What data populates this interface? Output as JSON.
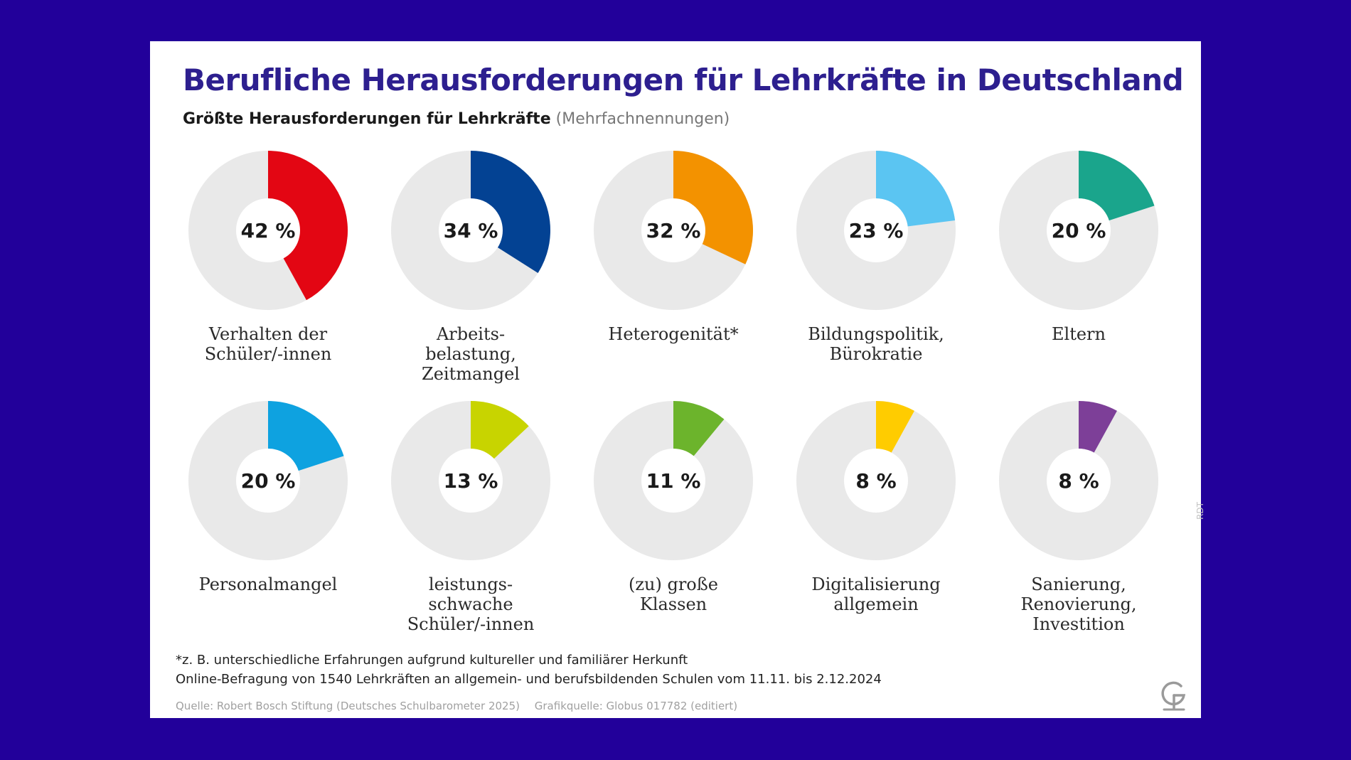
{
  "title": "Berufliche Herausforderungen für Lehrkräfte in Deutschland",
  "subtitle_main": "Größte Herausforderungen für Lehrkräfte",
  "subtitle_note": "(Mehrfachnennungen)",
  "footnote_line1": "*z. B. unterschiedliche Erfahrungen aufgrund kultureller und familiärer Herkunft",
  "footnote_line2": "Online-Befragung von 1540 Lehrkräften an allgemein- und berufsbildenden Schulen vom 11.11. bis 2.12.2024",
  "source": "Quelle: Robert Bosch Stiftung (Deutsches Schulbarometer 2025)",
  "graphic_source": "Grafikquelle: Globus 017782 (editiert)",
  "credit": "RDT",
  "chart_data": {
    "type": "pie",
    "title": "Größte Herausforderungen für Lehrkräfte",
    "unit": "%",
    "background_color": "#e9e9e9",
    "items": [
      {
        "label": "Verhalten der Schüler/-innen",
        "label_lines": [
          "Verhalten der",
          "Schüler/-innen"
        ],
        "value": 42,
        "value_label": "42 %",
        "color": "#e30613"
      },
      {
        "label": "Arbeitsbelastung, Zeitmangel",
        "label_lines": [
          "Arbeits-",
          "belastung,",
          "Zeitmangel"
        ],
        "value": 34,
        "value_label": "34 %",
        "color": "#034293"
      },
      {
        "label": "Heterogenität*",
        "label_lines": [
          "Heterogenität*"
        ],
        "value": 32,
        "value_label": "32 %",
        "color": "#f39200"
      },
      {
        "label": "Bildungspolitik, Bürokratie",
        "label_lines": [
          "Bildungspolitik,",
          "Bürokratie"
        ],
        "value": 23,
        "value_label": "23 %",
        "color": "#5bc5f2"
      },
      {
        "label": "Eltern",
        "label_lines": [
          "Eltern"
        ],
        "value": 20,
        "value_label": "20 %",
        "color": "#1aa58c"
      },
      {
        "label": "Personalmangel",
        "label_lines": [
          "Personalmangel"
        ],
        "value": 20,
        "value_label": "20 %",
        "color": "#0ea2e0"
      },
      {
        "label": "leistungsschwache Schüler/-innen",
        "label_lines": [
          "leistungs-",
          "schwache",
          "Schüler/-innen"
        ],
        "value": 13,
        "value_label": "13 %",
        "color": "#c8d400"
      },
      {
        "label": "(zu) große Klassen",
        "label_lines": [
          "(zu) große",
          "Klassen"
        ],
        "value": 11,
        "value_label": "11 %",
        "color": "#6cb42c"
      },
      {
        "label": "Digitalisierung allgemein",
        "label_lines": [
          "Digitalisierung",
          "allgemein"
        ],
        "value": 8,
        "value_label": "8 %",
        "color": "#ffcc00"
      },
      {
        "label": "Sanierung, Renovierung, Investition",
        "label_lines": [
          "Sanierung,",
          "Renovierung,",
          "Investition"
        ],
        "value": 8,
        "value_label": "8 %",
        "color": "#7d3f98"
      }
    ]
  }
}
